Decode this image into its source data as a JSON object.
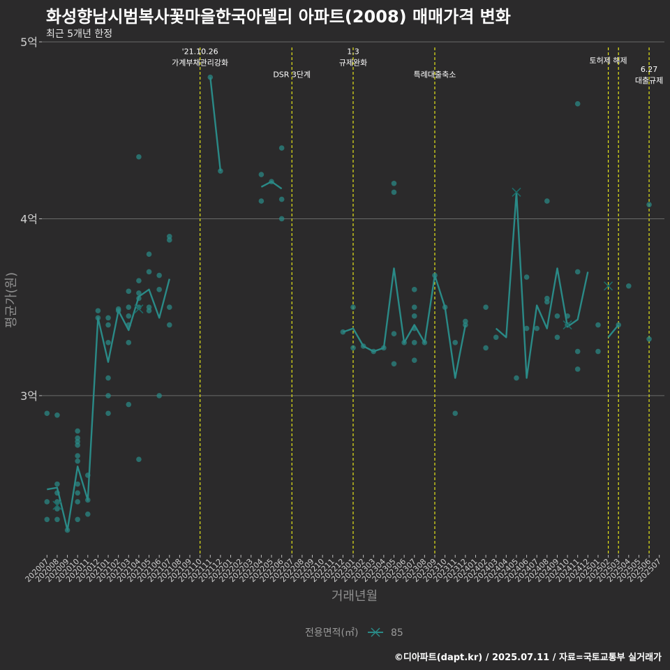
{
  "title": "화성향남시범복사꽃마을한국아델리 아파트(2008) 매매가격 변화",
  "subtitle": "최근 5개년 한정",
  "caption": "©디아파트(dapt.kr) / 2025.07.11 / 자료=국토교통부 실거래가",
  "colors": {
    "background": "#2b2a2b",
    "series": "#2a8a87",
    "vline": "#e6e619",
    "grid": "#6a6a6a"
  },
  "chart_data": {
    "type": "line",
    "xlabel": "거래년월",
    "ylabel": "평균가(원)",
    "ylim": [
      2.1,
      5.0
    ],
    "yticks": [
      {
        "v": 3,
        "label": "3억"
      },
      {
        "v": 4,
        "label": "4억"
      },
      {
        "v": 5,
        "label": "5억"
      }
    ],
    "x_categories": [
      "202007",
      "202008",
      "202009",
      "202010",
      "202011",
      "202012",
      "202101",
      "202102",
      "202103",
      "202104",
      "202105",
      "202106",
      "202107",
      "202108",
      "202109",
      "202110",
      "202111",
      "202112",
      "202201",
      "202202",
      "202203",
      "202204",
      "202205",
      "202206",
      "202207",
      "202208",
      "202209",
      "202210",
      "202211",
      "202212",
      "202301",
      "202302",
      "202303",
      "202304",
      "202305",
      "202306",
      "202307",
      "202308",
      "202309",
      "202310",
      "202311",
      "202312",
      "202401",
      "202402",
      "202403",
      "202404",
      "202405",
      "202406",
      "202407",
      "202408",
      "202409",
      "202410",
      "202411",
      "202412",
      "202501",
      "202502",
      "202503",
      "202504",
      "202505",
      "202506",
      "202507"
    ],
    "legend": {
      "title": "전용면적(㎡)",
      "entries": [
        "85"
      ]
    },
    "series": [
      {
        "name": "85",
        "segments": [
          [
            [
              "202007",
              2.47
            ],
            [
              "202008",
              2.48
            ],
            [
              "202009",
              2.24
            ],
            [
              "202010",
              2.6
            ],
            [
              "202011",
              2.41
            ],
            [
              "202012",
              3.44
            ],
            [
              "202101",
              3.19
            ],
            [
              "202102",
              3.48
            ],
            [
              "202103",
              3.37
            ],
            [
              "202104",
              3.56
            ],
            [
              "202105",
              3.6
            ],
            [
              "202106",
              3.44
            ],
            [
              "202107",
              3.66
            ]
          ],
          [
            [
              "202111",
              4.8
            ],
            [
              "202112",
              4.27
            ]
          ],
          [
            [
              "202204",
              4.18
            ],
            [
              "202205",
              4.21
            ],
            [
              "202206",
              4.17
            ]
          ],
          [
            [
              "202212",
              3.36
            ],
            [
              "202301",
              3.38
            ],
            [
              "202302",
              3.28
            ],
            [
              "202303",
              3.25
            ],
            [
              "202304",
              3.27
            ],
            [
              "202305",
              3.72
            ],
            [
              "202306",
              3.3
            ],
            [
              "202307",
              3.4
            ],
            [
              "202308",
              3.3
            ],
            [
              "202309",
              3.68
            ],
            [
              "202310",
              3.5
            ],
            [
              "202311",
              3.1
            ],
            [
              "202312",
              3.4
            ]
          ],
          [
            [
              "202403",
              3.38
            ],
            [
              "202404",
              3.33
            ],
            [
              "202405",
              4.15
            ],
            [
              "202406",
              3.1
            ],
            [
              "202407",
              3.51
            ],
            [
              "202408",
              3.38
            ],
            [
              "202409",
              3.72
            ],
            [
              "202410",
              3.39
            ],
            [
              "202411",
              3.43
            ],
            [
              "202412",
              3.7
            ]
          ],
          [
            [
              "202502",
              3.33
            ],
            [
              "202503",
              3.4
            ]
          ]
        ]
      },
      {
        "name": "points",
        "points": [
          [
            "202007",
            2.9
          ],
          [
            "202007",
            2.4
          ],
          [
            "202007",
            2.3
          ],
          [
            "202008",
            2.89
          ],
          [
            "202008",
            2.5
          ],
          [
            "202008",
            2.45
          ],
          [
            "202008",
            2.4
          ],
          [
            "202008",
            2.36
          ],
          [
            "202008",
            2.3
          ],
          [
            "202009",
            2.24
          ],
          [
            "202010",
            2.8
          ],
          [
            "202010",
            2.76
          ],
          [
            "202010",
            2.74
          ],
          [
            "202010",
            2.72
          ],
          [
            "202010",
            2.66
          ],
          [
            "202010",
            2.63
          ],
          [
            "202010",
            2.5
          ],
          [
            "202010",
            2.45
          ],
          [
            "202010",
            2.4
          ],
          [
            "202010",
            2.3
          ],
          [
            "202011",
            2.55
          ],
          [
            "202011",
            2.41
          ],
          [
            "202011",
            2.33
          ],
          [
            "202012",
            3.48
          ],
          [
            "202012",
            3.44
          ],
          [
            "202101",
            3.44
          ],
          [
            "202101",
            3.4
          ],
          [
            "202101",
            3.3
          ],
          [
            "202101",
            3.1
          ],
          [
            "202101",
            3.0
          ],
          [
            "202101",
            2.9
          ],
          [
            "202102",
            3.49
          ],
          [
            "202102",
            3.48
          ],
          [
            "202103",
            3.59
          ],
          [
            "202103",
            3.5
          ],
          [
            "202103",
            3.45
          ],
          [
            "202103",
            3.4
          ],
          [
            "202103",
            3.3
          ],
          [
            "202103",
            2.95
          ],
          [
            "202104",
            4.35
          ],
          [
            "202104",
            3.65
          ],
          [
            "202104",
            3.58
          ],
          [
            "202104",
            3.55
          ],
          [
            "202104",
            3.5
          ],
          [
            "202104",
            2.64
          ],
          [
            "202105",
            3.8
          ],
          [
            "202105",
            3.7
          ],
          [
            "202105",
            3.5
          ],
          [
            "202105",
            3.48
          ],
          [
            "202106",
            3.68
          ],
          [
            "202106",
            3.6
          ],
          [
            "202106",
            3.0
          ],
          [
            "202107",
            3.9
          ],
          [
            "202107",
            3.88
          ],
          [
            "202107",
            3.5
          ],
          [
            "202107",
            3.4
          ],
          [
            "202111",
            4.8
          ],
          [
            "202112",
            4.27
          ],
          [
            "202204",
            4.25
          ],
          [
            "202204",
            4.1
          ],
          [
            "202205",
            4.21
          ],
          [
            "202206",
            4.4
          ],
          [
            "202206",
            4.11
          ],
          [
            "202206",
            4.0
          ],
          [
            "202212",
            3.36
          ],
          [
            "202301",
            3.5
          ],
          [
            "202301",
            3.27
          ],
          [
            "202302",
            3.28
          ],
          [
            "202303",
            3.25
          ],
          [
            "202304",
            3.27
          ],
          [
            "202305",
            4.2
          ],
          [
            "202305",
            4.15
          ],
          [
            "202305",
            3.35
          ],
          [
            "202305",
            3.18
          ],
          [
            "202306",
            3.3
          ],
          [
            "202307",
            3.6
          ],
          [
            "202307",
            3.5
          ],
          [
            "202307",
            3.45
          ],
          [
            "202307",
            3.38
          ],
          [
            "202307",
            3.3
          ],
          [
            "202307",
            3.2
          ],
          [
            "202308",
            3.3
          ],
          [
            "202309",
            3.68
          ],
          [
            "202310",
            3.5
          ],
          [
            "202311",
            3.3
          ],
          [
            "202311",
            2.9
          ],
          [
            "202312",
            3.42
          ],
          [
            "202312",
            3.4
          ],
          [
            "202402",
            3.5
          ],
          [
            "202402",
            3.27
          ],
          [
            "202403",
            3.33
          ],
          [
            "202405",
            3.1
          ],
          [
            "202406",
            3.67
          ],
          [
            "202406",
            3.38
          ],
          [
            "202407",
            3.38
          ],
          [
            "202408",
            4.1
          ],
          [
            "202408",
            3.55
          ],
          [
            "202408",
            3.53
          ],
          [
            "202409",
            3.45
          ],
          [
            "202409",
            3.33
          ],
          [
            "202410",
            3.45
          ],
          [
            "202410",
            3.4
          ],
          [
            "202411",
            4.65
          ],
          [
            "202411",
            3.7
          ],
          [
            "202411",
            3.25
          ],
          [
            "202411",
            3.15
          ],
          [
            "202501",
            3.4
          ],
          [
            "202501",
            3.25
          ],
          [
            "202503",
            3.4
          ],
          [
            "202504",
            3.62
          ],
          [
            "202506",
            4.08
          ],
          [
            "202506",
            3.32
          ]
        ]
      },
      {
        "name": "markers",
        "points": [
          [
            "202008",
            2.38
          ],
          [
            "202104",
            3.49
          ],
          [
            "202405",
            4.15
          ],
          [
            "202410",
            3.4
          ],
          [
            "202502",
            3.62
          ]
        ]
      }
    ],
    "vlines": [
      {
        "x": "202110",
        "label": [
          "'21.10.26",
          "가계부채관리강화"
        ],
        "label_y": 4.93
      },
      {
        "x": "202207",
        "label": [
          "DSR 3단계"
        ],
        "label_y": 4.8
      },
      {
        "x": "202301",
        "label": [
          "1.3",
          "규제완화"
        ],
        "label_y": 4.93
      },
      {
        "x": "202309",
        "label": [
          "특례대출축소"
        ],
        "label_y": 4.8
      },
      {
        "x": "202502",
        "label": [
          "토허제 해제"
        ],
        "label_y": 4.88
      },
      {
        "x": "202503",
        "label": [],
        "label_y": 0
      },
      {
        "x": "202506",
        "label": [
          "6.27",
          "대출규제"
        ],
        "label_y": 4.83
      }
    ]
  }
}
